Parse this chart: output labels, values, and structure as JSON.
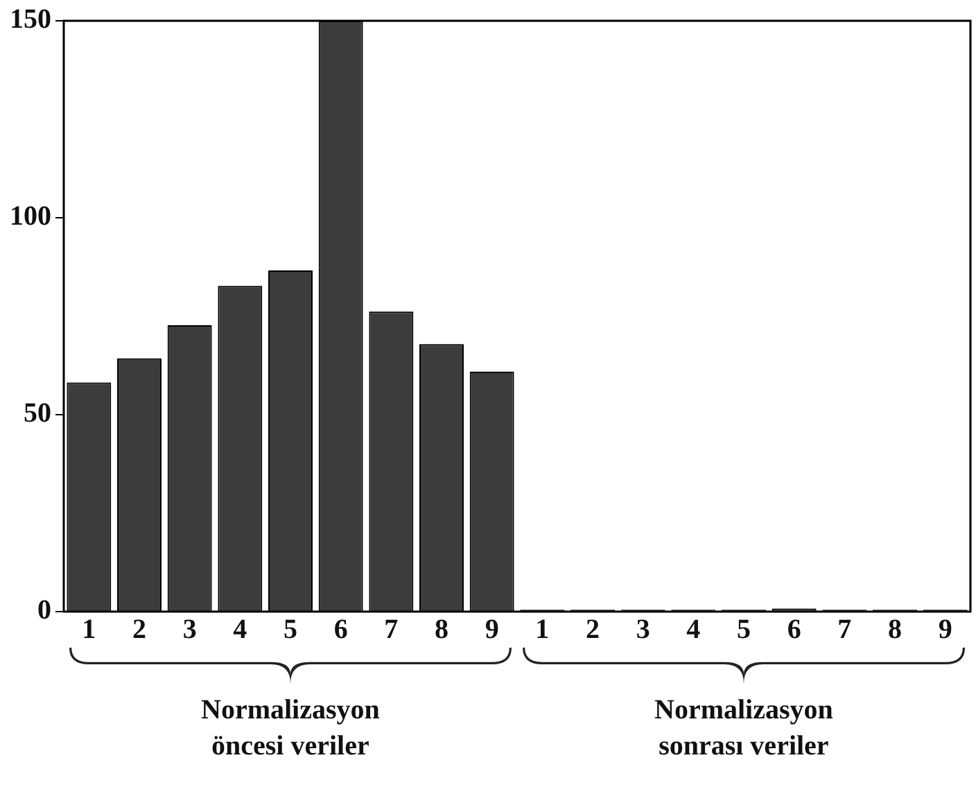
{
  "chart_data": {
    "type": "bar",
    "categories": [
      "1",
      "2",
      "3",
      "4",
      "5",
      "6",
      "7",
      "8",
      "9",
      "1",
      "2",
      "3",
      "4",
      "5",
      "6",
      "7",
      "8",
      "9"
    ],
    "values": [
      58.2,
      64.3,
      72.7,
      82.7,
      86.6,
      150,
      76.2,
      67.9,
      60.9,
      0.5,
      0.5,
      0.5,
      0.5,
      0.5,
      0.8,
      0.5,
      0.5,
      0.5
    ],
    "color": "#3c3c3c",
    "ylim": [
      0,
      150
    ],
    "yticks": [
      0,
      50,
      100,
      150
    ],
    "grid": false,
    "legend": false,
    "annotations": [
      "Normalizasyon\nöncesi veriler",
      "Normalizasyon\nsonrası veriler"
    ]
  }
}
